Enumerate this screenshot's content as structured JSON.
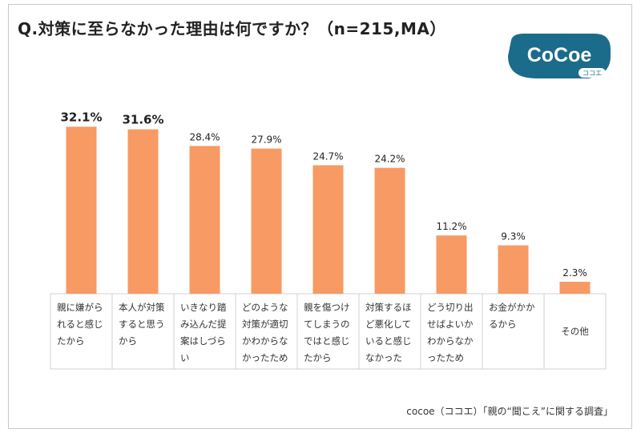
{
  "title": "Q.対策に至らなかった理由は何ですか？（n=215,MA）",
  "logo": {
    "brand": "CoCoe",
    "sub": "ココエ"
  },
  "source": "cocoe（ココエ）「親の“聞こえ”に関する調査」",
  "colors": {
    "bar": "#f79a64",
    "grid": "#d0d0d0",
    "logo": "#1b6b8a"
  },
  "chart_data": {
    "type": "bar",
    "categories": [
      "親に嫌がられると感じたから",
      "本人が対策すると思うから",
      "いきなり踏み込んだ提案はしづらい",
      "どのような対策が適切かわからなかったため",
      "親を傷つけてしまうのではと感じたから",
      "対策するほど悪化していると感じなかった",
      "どう切り出せばよいかわからなかったため",
      "お金がかかるから",
      "その他"
    ],
    "values": [
      32.1,
      31.6,
      28.4,
      27.9,
      24.7,
      24.2,
      11.2,
      9.3,
      2.3
    ],
    "labels": [
      "32.1%",
      "31.6%",
      "28.4%",
      "27.9%",
      "24.7%",
      "24.2%",
      "11.2%",
      "9.3%",
      "2.3%"
    ],
    "bold_top": 2,
    "ylim": [
      0,
      35
    ]
  }
}
